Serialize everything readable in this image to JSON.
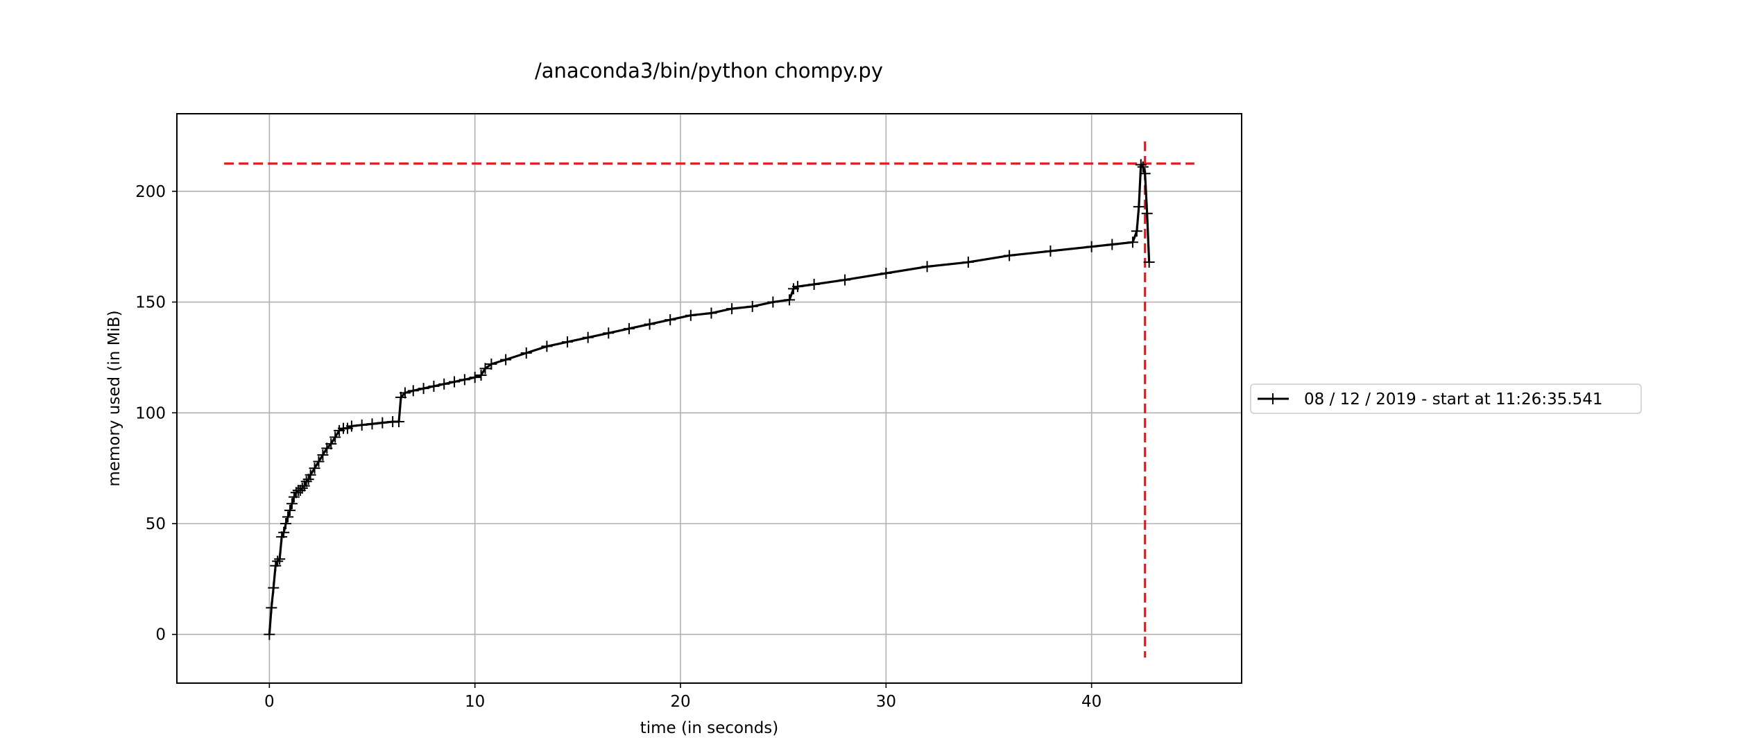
{
  "chart_data": {
    "type": "line",
    "title": "/anaconda3/bin/python chompy.py",
    "xlabel": "time (in seconds)",
    "ylabel": "memory used (in MiB)",
    "xlim": [
      -4.5,
      47.3
    ],
    "ylim": [
      -22,
      235
    ],
    "x_ticks": [
      0,
      10,
      20,
      30,
      40
    ],
    "y_ticks": [
      0,
      50,
      100,
      150,
      200
    ],
    "grid": true,
    "legend": {
      "placement": "outside-right",
      "entries": [
        "08 / 12 / 2019 - start at 11:26:35.541"
      ]
    },
    "colors": {
      "series": "#000000",
      "marker_lines": "#e31a1c"
    },
    "series": [
      {
        "name": "08 / 12 / 2019 - start at 11:26:35.541",
        "marker": "+",
        "x": [
          0.0,
          0.1,
          0.2,
          0.3,
          0.4,
          0.5,
          0.6,
          0.7,
          0.8,
          0.9,
          1.0,
          1.1,
          1.2,
          1.3,
          1.4,
          1.5,
          1.6,
          1.7,
          1.8,
          1.9,
          2.0,
          2.2,
          2.4,
          2.6,
          2.8,
          3.0,
          3.2,
          3.4,
          3.6,
          3.8,
          4.0,
          4.5,
          5.0,
          5.5,
          6.0,
          6.3,
          6.4,
          6.6,
          7.0,
          7.5,
          8.0,
          8.5,
          9.0,
          9.5,
          10.0,
          10.3,
          10.5,
          10.8,
          11.5,
          12.5,
          13.5,
          14.5,
          15.5,
          16.5,
          17.5,
          18.5,
          19.5,
          20.5,
          21.5,
          22.5,
          23.5,
          24.5,
          25.3,
          25.5,
          25.7,
          26.5,
          28.0,
          30.0,
          32.0,
          34.0,
          36.0,
          38.0,
          40.0,
          41.0,
          42.0,
          42.2,
          42.3,
          42.4,
          42.5,
          42.6,
          42.7,
          42.8
        ],
        "values": [
          0,
          12,
          21,
          31,
          33,
          34,
          44,
          46,
          50,
          53,
          56,
          59,
          62,
          64,
          65,
          65,
          66,
          67,
          69,
          70,
          72,
          75,
          78,
          81,
          84,
          86,
          89,
          92,
          93,
          93,
          94,
          94.5,
          95,
          95.5,
          96,
          96,
          107,
          109,
          110,
          111,
          112,
          113,
          114,
          115,
          116,
          117,
          120,
          122,
          124,
          127,
          130,
          132,
          134,
          136,
          138,
          140,
          142,
          144,
          145,
          147,
          148,
          150,
          151,
          156,
          157,
          158,
          160,
          163,
          166,
          168,
          171,
          173,
          175,
          176,
          177,
          182,
          193,
          212,
          211,
          208,
          190,
          168
        ]
      }
    ],
    "reference_lines": [
      {
        "orientation": "horizontal",
        "y": 212.5,
        "x_from": -2.2,
        "x_to": 45.0,
        "style": "dashed"
      },
      {
        "orientation": "vertical",
        "x": 42.6,
        "y_from": -10.5,
        "y_to": 222.5,
        "style": "dashed"
      }
    ]
  }
}
